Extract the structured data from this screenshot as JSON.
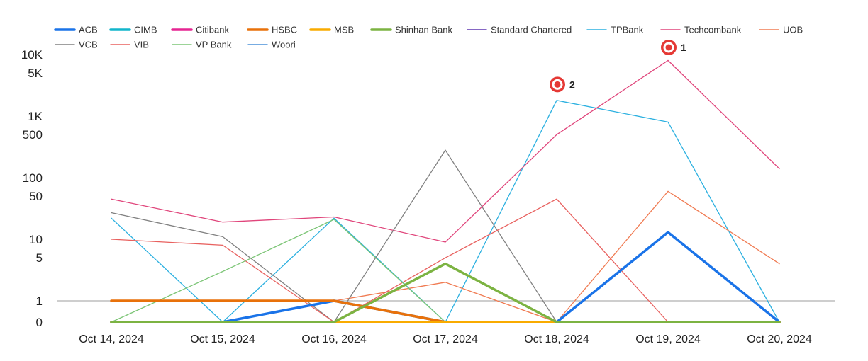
{
  "chart_data": {
    "type": "line",
    "x": [
      "Oct 14, 2024",
      "Oct 15, 2024",
      "Oct 16, 2024",
      "Oct 17, 2024",
      "Oct 18, 2024",
      "Oct 19, 2024",
      "Oct 20, 2024"
    ],
    "y_scale": "log (with 0 baseline)",
    "y_ticks": [
      {
        "value": 0,
        "label": "0"
      },
      {
        "value": 1,
        "label": "1"
      },
      {
        "value": 5,
        "label": "5"
      },
      {
        "value": 10,
        "label": "10"
      },
      {
        "value": 50,
        "label": "50"
      },
      {
        "value": 100,
        "label": "100"
      },
      {
        "value": 500,
        "label": "500"
      },
      {
        "value": 1000,
        "label": "1K"
      },
      {
        "value": 5000,
        "label": "5K"
      },
      {
        "value": 10000,
        "label": "10K"
      }
    ],
    "legend_position": "top-left",
    "series": [
      {
        "name": "ACB",
        "color": "#1a73e8",
        "bold": true,
        "values": [
          0,
          0,
          1,
          0,
          0,
          13,
          0
        ]
      },
      {
        "name": "CIMB",
        "color": "#12b5cb",
        "bold": true,
        "values": [
          0,
          0,
          0,
          0,
          0,
          0,
          0
        ]
      },
      {
        "name": "Citibank",
        "color": "#e52592",
        "bold": true,
        "values": [
          0,
          0,
          0,
          0,
          0,
          0,
          0
        ]
      },
      {
        "name": "HSBC",
        "color": "#e8710a",
        "bold": true,
        "values": [
          1,
          1,
          1,
          0,
          0,
          0,
          0
        ]
      },
      {
        "name": "MSB",
        "color": "#f9ab00",
        "bold": true,
        "values": [
          0,
          0,
          0,
          0,
          0,
          0,
          0
        ]
      },
      {
        "name": "Shinhan Bank",
        "color": "#7cb342",
        "bold": true,
        "values": [
          0,
          0,
          0,
          4,
          0,
          0,
          0
        ]
      },
      {
        "name": "Standard Chartered",
        "color": "#5e35b1",
        "bold": false,
        "values": [
          0,
          0,
          0,
          0,
          0,
          0,
          0
        ]
      },
      {
        "name": "TPBank",
        "color": "#2bb0e0",
        "bold": false,
        "values": [
          22,
          0,
          22,
          0,
          1800,
          800,
          0
        ]
      },
      {
        "name": "Techcombank",
        "color": "#e0457b",
        "bold": false,
        "values": [
          45,
          19,
          23,
          9,
          500,
          8000,
          140
        ]
      },
      {
        "name": "UOB",
        "color": "#f07b52",
        "bold": false,
        "values": [
          0,
          0,
          1,
          2,
          0,
          60,
          4
        ]
      },
      {
        "name": "VCB",
        "color": "#808080",
        "bold": false,
        "values": [
          27,
          11,
          0,
          280,
          0,
          0,
          0
        ]
      },
      {
        "name": "VIB",
        "color": "#e8615f",
        "bold": false,
        "values": [
          10,
          8,
          0,
          5,
          45,
          0,
          0
        ]
      },
      {
        "name": "VP Bank",
        "color": "#7cc576",
        "bold": false,
        "values": [
          0,
          3,
          21,
          0,
          0,
          0,
          0
        ]
      },
      {
        "name": "Woori",
        "color": "#4a90d9",
        "bold": false,
        "values": [
          0,
          0,
          0,
          0,
          0,
          0,
          0
        ]
      }
    ],
    "annotations": [
      {
        "label": "1",
        "series": "Techcombank",
        "x": "Oct 19, 2024",
        "y": 10000
      },
      {
        "label": "2",
        "series": "TPBank",
        "x": "Oct 18, 2024",
        "y": 2500
      }
    ]
  }
}
